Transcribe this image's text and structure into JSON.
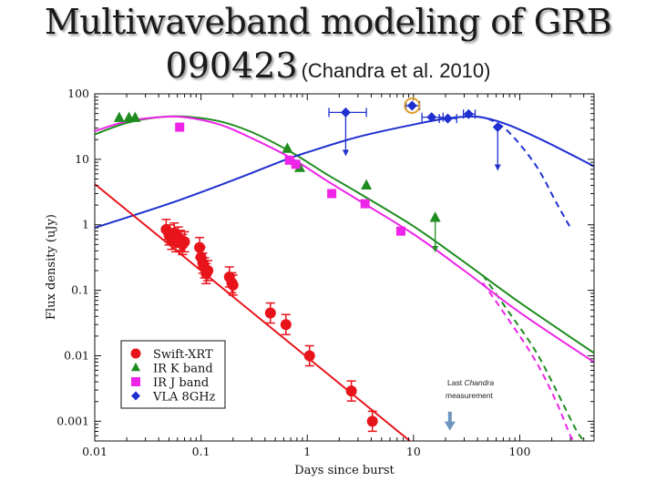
{
  "slide": {
    "title_line1": "Multiwaveband modeling of GRB",
    "title_line2_number": "090423",
    "title_line2_citation": "(Chandra et al. 2010)"
  },
  "chart_data": {
    "type": "scatter",
    "xlabel": "Days since burst",
    "ylabel": "Flux density (uJy)",
    "xscale": "log",
    "yscale": "log",
    "xlim": [
      0.01,
      500
    ],
    "ylim": [
      0.0005,
      100
    ],
    "grid": false,
    "legend_position": "bottom-left",
    "xticks": [
      {
        "v": 0.01,
        "label": "0.01"
      },
      {
        "v": 0.1,
        "label": "0.1"
      },
      {
        "v": 1,
        "label": "1"
      },
      {
        "v": 10,
        "label": "10"
      },
      {
        "v": 100,
        "label": "100"
      }
    ],
    "yticks": [
      {
        "v": 0.001,
        "label": "0.001"
      },
      {
        "v": 0.01,
        "label": "0.01"
      },
      {
        "v": 0.1,
        "label": "0.1"
      },
      {
        "v": 1,
        "label": "1"
      },
      {
        "v": 10,
        "label": "10"
      },
      {
        "v": 100,
        "label": "100"
      }
    ],
    "colors": {
      "xrt": "#e8141b",
      "k": "#1e8c1e",
      "j": "#ee24e8",
      "vla": "#1f2fd0",
      "arrow": "#6f95bd",
      "circle": "#e0a030"
    },
    "series": [
      {
        "name": "Swift-XRT",
        "color": "#e8141b",
        "marker": "circle",
        "points": [
          {
            "x": 0.047,
            "y": 0.85
          },
          {
            "x": 0.05,
            "y": 0.7
          },
          {
            "x": 0.053,
            "y": 0.6
          },
          {
            "x": 0.056,
            "y": 0.75
          },
          {
            "x": 0.058,
            "y": 0.55
          },
          {
            "x": 0.061,
            "y": 0.65
          },
          {
            "x": 0.064,
            "y": 0.58
          },
          {
            "x": 0.067,
            "y": 0.5
          },
          {
            "x": 0.07,
            "y": 0.55
          },
          {
            "x": 0.097,
            "y": 0.45
          },
          {
            "x": 0.1,
            "y": 0.32
          },
          {
            "x": 0.104,
            "y": 0.26
          },
          {
            "x": 0.108,
            "y": 0.22
          },
          {
            "x": 0.112,
            "y": 0.18
          },
          {
            "x": 0.116,
            "y": 0.2
          },
          {
            "x": 0.185,
            "y": 0.16
          },
          {
            "x": 0.195,
            "y": 0.13
          },
          {
            "x": 0.2,
            "y": 0.12
          },
          {
            "x": 0.45,
            "y": 0.045
          },
          {
            "x": 0.63,
            "y": 0.03
          },
          {
            "x": 1.05,
            "y": 0.01
          },
          {
            "x": 2.6,
            "y": 0.0029
          },
          {
            "x": 4.1,
            "y": 0.001
          }
        ]
      },
      {
        "name": "IR K band",
        "color": "#1e8c1e",
        "marker": "triangle",
        "points": [
          {
            "x": 0.017,
            "y": 43
          },
          {
            "x": 0.021,
            "y": 43
          },
          {
            "x": 0.024,
            "y": 43
          },
          {
            "x": 0.65,
            "y": 14.5
          },
          {
            "x": 0.85,
            "y": 7.4
          },
          {
            "x": 3.6,
            "y": 4.0
          },
          {
            "x": 16,
            "y": 1.28,
            "upper_limit": true
          }
        ]
      },
      {
        "name": "IR J band",
        "color": "#ee24e8",
        "marker": "square",
        "points": [
          {
            "x": 0.063,
            "y": 31
          },
          {
            "x": 0.68,
            "y": 9.7
          },
          {
            "x": 0.78,
            "y": 8.4
          },
          {
            "x": 1.7,
            "y": 3.0
          },
          {
            "x": 3.5,
            "y": 2.1
          },
          {
            "x": 7.6,
            "y": 0.8
          }
        ]
      },
      {
        "name": "VLA 8GHz",
        "color": "#1f2fd0",
        "marker": "diamond",
        "points": [
          {
            "x": 2.3,
            "y": 52,
            "xerr": [
              0.7,
              1.3
            ],
            "upper_limit": true
          },
          {
            "x": 9.7,
            "y": 66,
            "xerr": [
              1.2,
              1.7
            ]
          },
          {
            "x": 14.8,
            "y": 44,
            "xerr": [
              2.8,
              4.2
            ]
          },
          {
            "x": 21,
            "y": 42,
            "xerr": [
              3.5,
              4.5
            ]
          },
          {
            "x": 33,
            "y": 49,
            "xerr": [
              3.5,
              5.0
            ]
          },
          {
            "x": 62,
            "y": 31,
            "upper_limit": true
          }
        ]
      }
    ],
    "model_curves": [
      {
        "series": "IR K band",
        "color": "#1e8c1e",
        "solid": [
          [
            0.01,
            24
          ],
          [
            0.02,
            36
          ],
          [
            0.04,
            44
          ],
          [
            0.07,
            45
          ],
          [
            0.15,
            38
          ],
          [
            0.3,
            26
          ],
          [
            0.7,
            13
          ],
          [
            1.5,
            6
          ],
          [
            3,
            3.1
          ],
          [
            10,
            0.95
          ],
          [
            30,
            0.27
          ],
          [
            100,
            0.065
          ],
          [
            500,
            0.011
          ]
        ],
        "dashed": [
          [
            45,
            0.17
          ],
          [
            80,
            0.045
          ],
          [
            140,
            0.012
          ],
          [
            220,
            0.003
          ],
          [
            330,
            0.0008
          ],
          [
            400,
            0.0005
          ]
        ]
      },
      {
        "series": "IR J band",
        "color": "#ee24e8",
        "solid": [
          [
            0.01,
            27
          ],
          [
            0.02,
            38
          ],
          [
            0.04,
            44
          ],
          [
            0.07,
            44
          ],
          [
            0.15,
            34
          ],
          [
            0.3,
            21
          ],
          [
            0.7,
            10.5
          ],
          [
            1.5,
            4.8
          ],
          [
            3,
            2.4
          ],
          [
            10,
            0.72
          ],
          [
            30,
            0.2
          ],
          [
            100,
            0.046
          ],
          [
            500,
            0.008
          ]
        ],
        "dashed": [
          [
            45,
            0.13
          ],
          [
            80,
            0.034
          ],
          [
            140,
            0.0085
          ],
          [
            220,
            0.002
          ],
          [
            300,
            0.0006
          ],
          [
            360,
            0.0004
          ]
        ]
      },
      {
        "series": "VLA 8GHz",
        "color": "#1f2fd0",
        "solid": [
          [
            0.01,
            0.9
          ],
          [
            0.05,
            2.1
          ],
          [
            0.2,
            4.8
          ],
          [
            0.6,
            9.6
          ],
          [
            1,
            12.8
          ],
          [
            3,
            22
          ],
          [
            10,
            34
          ],
          [
            20,
            42
          ],
          [
            35,
            45
          ],
          [
            50,
            42
          ],
          [
            80,
            33
          ],
          [
            150,
            21
          ],
          [
            300,
            12
          ],
          [
            500,
            7.8
          ]
        ],
        "dashed": [
          [
            50,
            42
          ],
          [
            70,
            31
          ],
          [
            100,
            17
          ],
          [
            150,
            7
          ],
          [
            220,
            2.2
          ],
          [
            300,
            0.9
          ]
        ]
      },
      {
        "series": "Swift-XRT",
        "color": "#e8141b",
        "solid": [
          [
            0.01,
            4.2
          ],
          [
            0.1,
            0.2
          ],
          [
            1,
            0.0095
          ],
          [
            10,
            0.00045
          ]
        ]
      }
    ],
    "annotations": [
      {
        "name": "last-chandra-note",
        "line1_prefix": "Last ",
        "line1_italic": "Chandra",
        "line2": "measurement",
        "x": 22,
        "y": 0.0013
      },
      {
        "name": "last-chandra-arrow",
        "x": 22,
        "y_from": 0.0014,
        "y_to": 0.00072
      },
      {
        "name": "vla-peak-highlight",
        "x": 9.7,
        "y": 66
      }
    ]
  }
}
